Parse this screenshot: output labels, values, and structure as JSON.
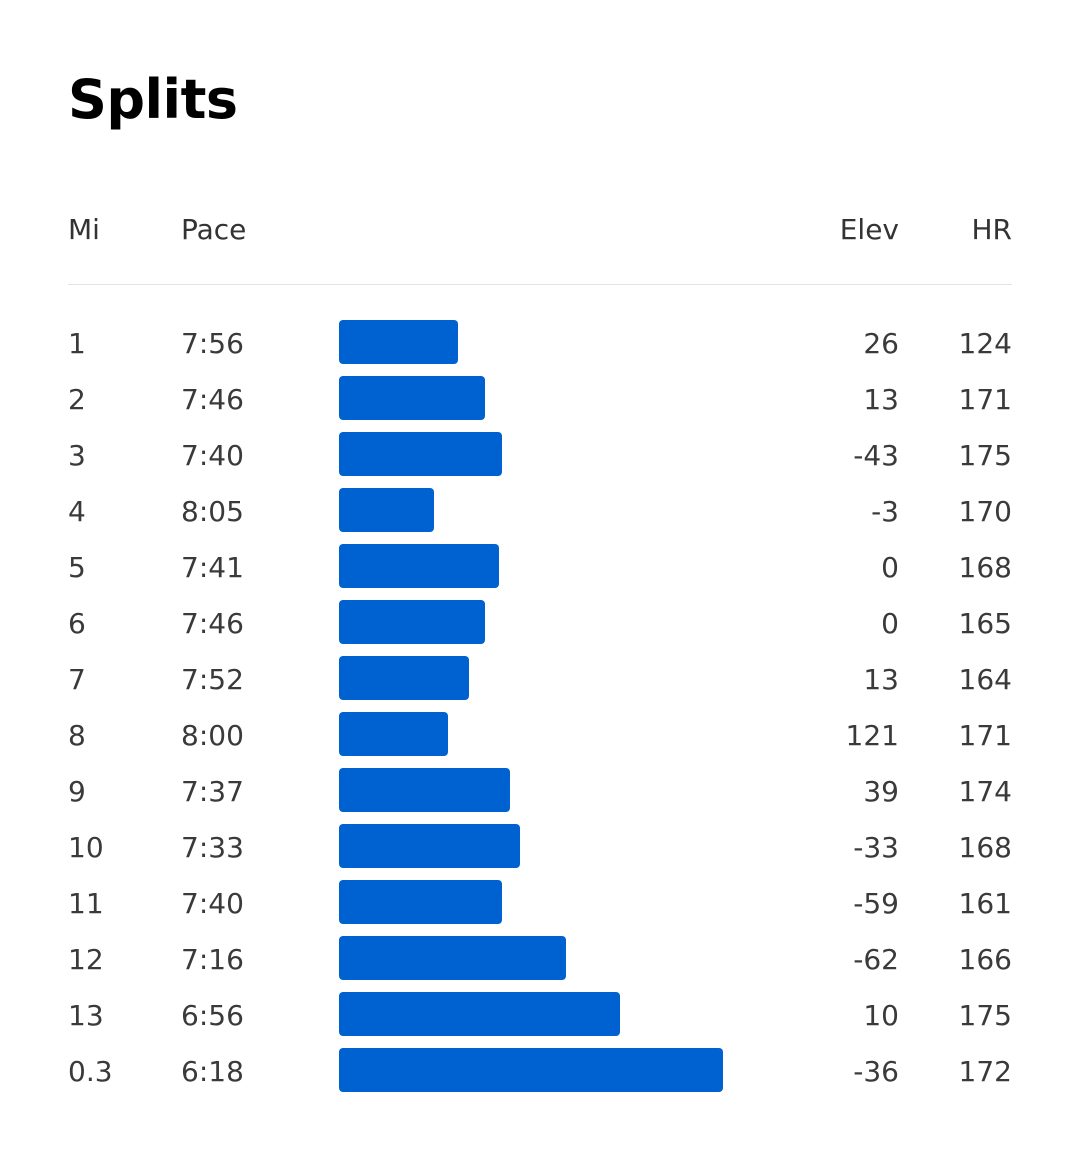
{
  "title": "Splits",
  "columns": {
    "mi": "Mi",
    "pace": "Pace",
    "elev": "Elev",
    "hr": "HR"
  },
  "colors": {
    "bar": "#0061d1"
  },
  "splits": [
    {
      "mi": "1",
      "pace": "7:56",
      "elev": "26",
      "hr": "124"
    },
    {
      "mi": "2",
      "pace": "7:46",
      "elev": "13",
      "hr": "171"
    },
    {
      "mi": "3",
      "pace": "7:40",
      "elev": "-43",
      "hr": "175"
    },
    {
      "mi": "4",
      "pace": "8:05",
      "elev": "-3",
      "hr": "170"
    },
    {
      "mi": "5",
      "pace": "7:41",
      "elev": "0",
      "hr": "168"
    },
    {
      "mi": "6",
      "pace": "7:46",
      "elev": "0",
      "hr": "165"
    },
    {
      "mi": "7",
      "pace": "7:52",
      "elev": "13",
      "hr": "164"
    },
    {
      "mi": "8",
      "pace": "8:00",
      "elev": "121",
      "hr": "171"
    },
    {
      "mi": "9",
      "pace": "7:37",
      "elev": "39",
      "hr": "174"
    },
    {
      "mi": "10",
      "pace": "7:33",
      "elev": "-33",
      "hr": "168"
    },
    {
      "mi": "11",
      "pace": "7:40",
      "elev": "-59",
      "hr": "161"
    },
    {
      "mi": "12",
      "pace": "7:16",
      "elev": "-62",
      "hr": "166"
    },
    {
      "mi": "13",
      "pace": "6:56",
      "elev": "10",
      "hr": "175"
    },
    {
      "mi": "0.3",
      "pace": "6:18",
      "elev": "-36",
      "hr": "172"
    }
  ]
}
